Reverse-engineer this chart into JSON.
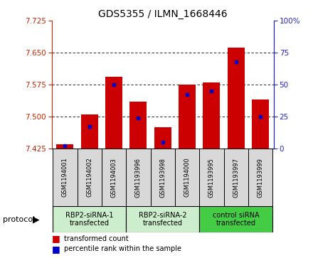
{
  "title": "GDS5355 / ILMN_1668446",
  "samples": [
    "GSM1194001",
    "GSM1194002",
    "GSM1194003",
    "GSM1193996",
    "GSM1193998",
    "GSM1194000",
    "GSM1193995",
    "GSM1193997",
    "GSM1193999"
  ],
  "bar_values": [
    7.435,
    7.505,
    7.593,
    7.535,
    7.475,
    7.575,
    7.58,
    7.662,
    7.54
  ],
  "percentile_values": [
    2,
    17,
    50,
    24,
    5,
    42,
    45,
    68,
    25
  ],
  "y_min": 7.425,
  "y_max": 7.725,
  "y_ticks_left": [
    7.425,
    7.5,
    7.575,
    7.65,
    7.725
  ],
  "y_ticks_right": [
    0,
    25,
    50,
    75,
    100
  ],
  "bar_color": "#cc0000",
  "blue_color": "#0000cc",
  "bar_width": 0.7,
  "groups": [
    {
      "label": "RBP2-siRNA-1\ntransfected",
      "indices": [
        0,
        1,
        2
      ]
    },
    {
      "label": "RBP2-siRNA-2\ntransfected",
      "indices": [
        3,
        4,
        5
      ]
    },
    {
      "label": "control siRNA\ntransfected",
      "indices": [
        6,
        7,
        8
      ]
    }
  ],
  "group_colors": [
    "#cceecc",
    "#cceecc",
    "#44cc44"
  ],
  "sample_box_color": "#d8d8d8",
  "legend_red_label": "transformed count",
  "legend_blue_label": "percentile rank within the sample",
  "protocol_label": "protocol",
  "left_axis_color": "#cc2200",
  "right_axis_color": "#2222cc",
  "title_fontsize": 10,
  "tick_fontsize": 7.5,
  "sample_fontsize": 6,
  "group_fontsize": 7,
  "legend_fontsize": 7
}
